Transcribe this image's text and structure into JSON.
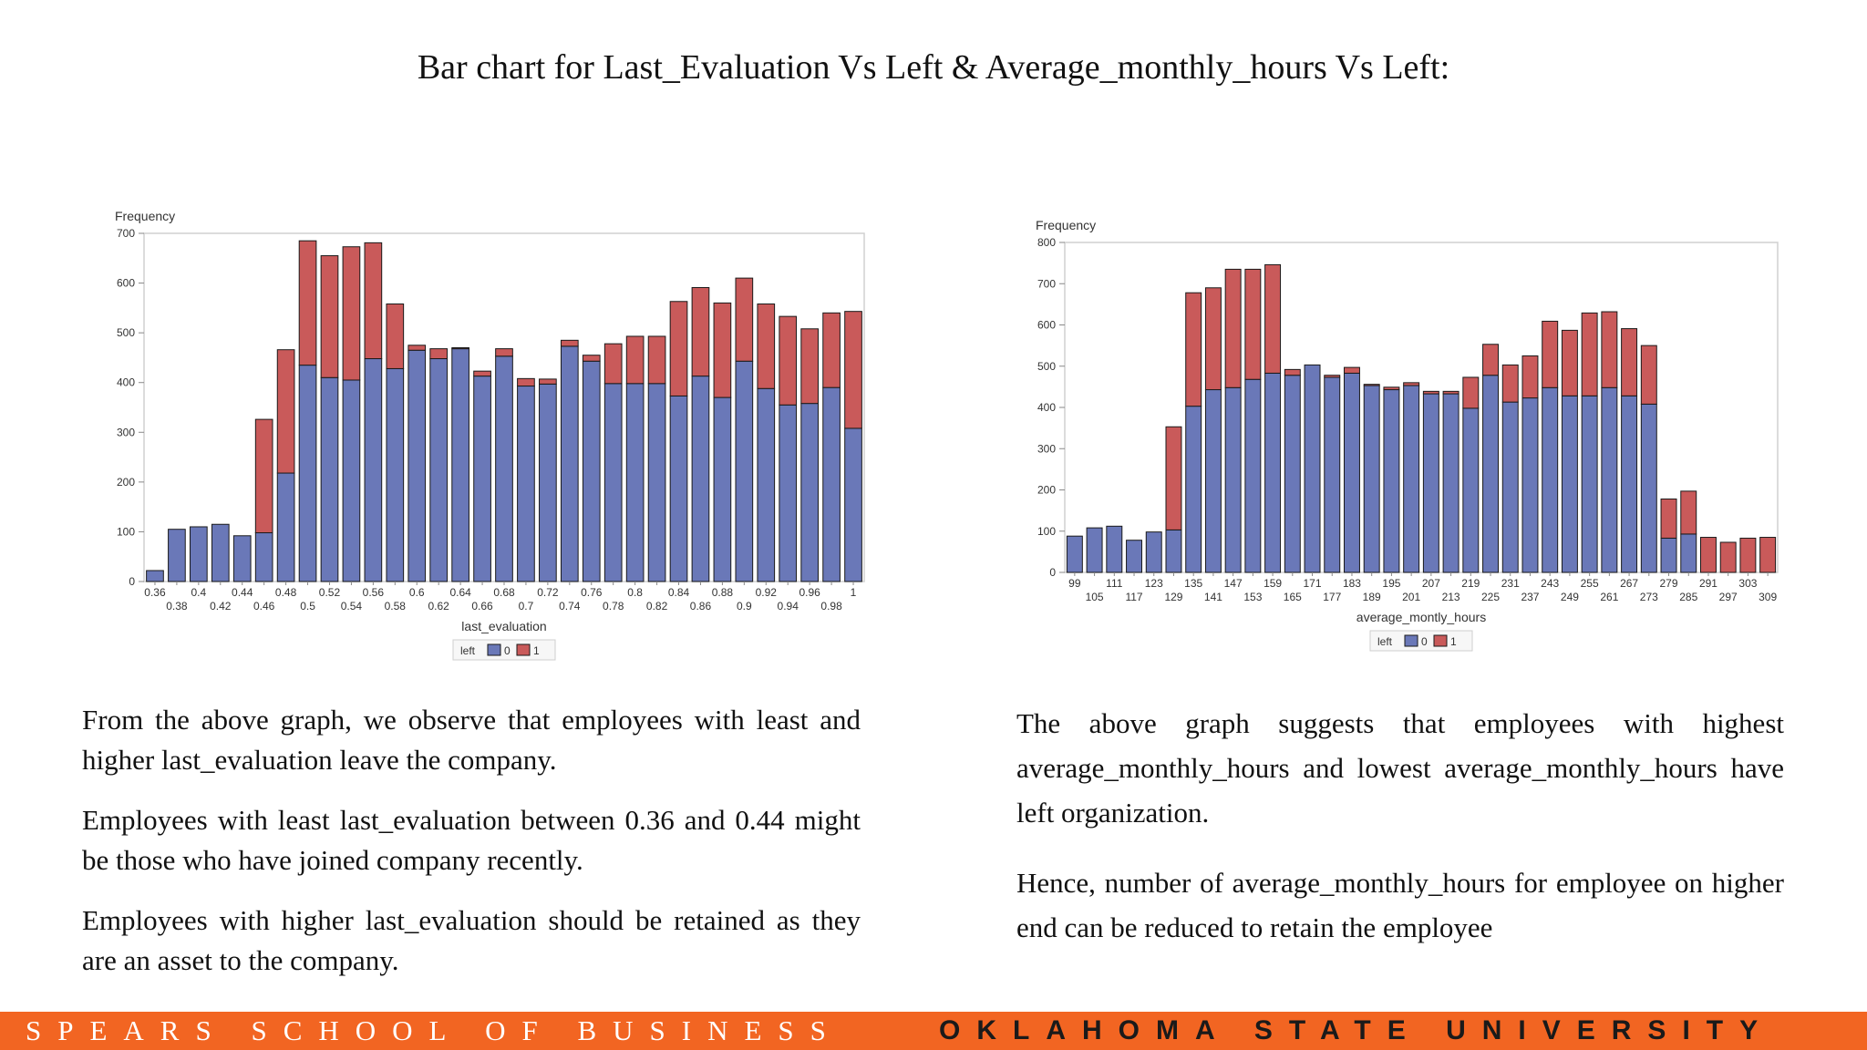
{
  "slide": {
    "title": "Bar chart for Last_Evaluation Vs Left & Average_monthly_hours Vs Left:"
  },
  "paragraphs": {
    "left": [
      "From the above graph, we observe that employees with least and higher last_evaluation leave the company.",
      "Employees with least last_evaluation between 0.36 and 0.44 might be those who have joined company recently.",
      "Employees with higher last_evaluation should be retained as they are an asset to the company."
    ],
    "right": [
      "The above graph suggests that employees with highest average_monthly_hours and lowest average_monthly_hours have left organization.",
      "Hence, number of average_monthly_hours for employee on higher end can be reduced to retain the employee"
    ]
  },
  "footer": {
    "school": "SPEARS SCHOOL OF BUSINESS",
    "university": "OKLAHOMA STATE UNIVERSITY"
  },
  "colors": {
    "series0": "#6a78b8",
    "series1": "#c95a5a",
    "footer_bg": "#f26522"
  },
  "chart_data": [
    {
      "type": "bar",
      "stacked": true,
      "title": "",
      "xlabel": "last_evaluation",
      "ylabel": "Frequency",
      "ylim": [
        0,
        700
      ],
      "yticks": [
        0,
        100,
        200,
        300,
        400,
        500,
        600,
        700
      ],
      "legend": {
        "title": "left",
        "position": "bottom-center"
      },
      "categories": [
        "0.36",
        "0.38",
        "0.4",
        "0.42",
        "0.44",
        "0.46",
        "0.48",
        "0.5",
        "0.52",
        "0.54",
        "0.56",
        "0.58",
        "0.6",
        "0.62",
        "0.64",
        "0.66",
        "0.68",
        "0.7",
        "0.72",
        "0.74",
        "0.76",
        "0.78",
        "0.8",
        "0.82",
        "0.84",
        "0.86",
        "0.88",
        "0.9",
        "0.92",
        "0.94",
        "0.96",
        "0.98",
        "1"
      ],
      "series": [
        {
          "name": "0",
          "values": [
            22,
            105,
            110,
            115,
            92,
            98,
            218,
            435,
            410,
            405,
            448,
            428,
            465,
            448,
            468,
            413,
            453,
            393,
            397,
            473,
            443,
            398,
            398,
            398,
            373,
            413,
            370,
            443,
            388,
            355,
            358,
            390,
            308
          ]
        },
        {
          "name": "1",
          "values": [
            0,
            0,
            0,
            0,
            0,
            228,
            248,
            250,
            245,
            268,
            233,
            130,
            10,
            20,
            2,
            10,
            15,
            15,
            10,
            12,
            12,
            80,
            95,
            95,
            190,
            178,
            190,
            167,
            170,
            178,
            150,
            150,
            235
          ]
        }
      ]
    },
    {
      "type": "bar",
      "stacked": true,
      "title": "",
      "xlabel": "average_montly_hours",
      "ylabel": "Frequency",
      "ylim": [
        0,
        800
      ],
      "yticks": [
        0,
        100,
        200,
        300,
        400,
        500,
        600,
        700,
        800
      ],
      "legend": {
        "title": "left",
        "position": "bottom-center"
      },
      "categories": [
        "99",
        "105",
        "111",
        "117",
        "123",
        "129",
        "135",
        "141",
        "147",
        "153",
        "159",
        "165",
        "171",
        "177",
        "183",
        "189",
        "195",
        "201",
        "207",
        "213",
        "219",
        "225",
        "231",
        "237",
        "243",
        "249",
        "255",
        "261",
        "267",
        "273",
        "279",
        "285",
        "291",
        "297",
        "303",
        "309"
      ],
      "series": [
        {
          "name": "0",
          "values": [
            88,
            108,
            112,
            78,
            98,
            103,
            403,
            443,
            448,
            468,
            483,
            478,
            503,
            473,
            483,
            453,
            443,
            453,
            433,
            433,
            398,
            478,
            413,
            423,
            448,
            428,
            428,
            448,
            428,
            408,
            83,
            93,
            0,
            0,
            0,
            0
          ]
        },
        {
          "name": "1",
          "values": [
            0,
            0,
            0,
            0,
            0,
            250,
            275,
            247,
            287,
            267,
            263,
            14,
            0,
            5,
            14,
            3,
            6,
            7,
            6,
            6,
            75,
            75,
            90,
            102,
            161,
            159,
            201,
            184,
            163,
            142,
            95,
            104,
            85,
            73,
            83,
            85
          ]
        }
      ]
    }
  ]
}
